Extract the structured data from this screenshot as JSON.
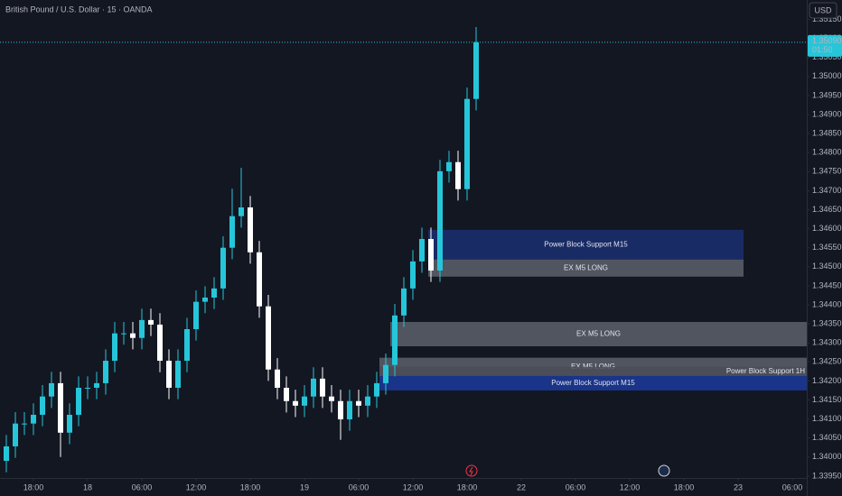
{
  "chart_data": {
    "type": "candlestick",
    "title": "British Pound / U.S. Dollar · 15 · OANDA",
    "currency": "USD",
    "up_color": "#26c6da",
    "down_color": "#ffffff",
    "grid": false,
    "x": [
      -9,
      -8,
      -7,
      -6,
      -5,
      -4,
      -3,
      -2,
      -1,
      0,
      1,
      2,
      3,
      4,
      5,
      6,
      7,
      8,
      9,
      10,
      11,
      12,
      13,
      14,
      15,
      16,
      17,
      18,
      19,
      20,
      21,
      22,
      23,
      24,
      25,
      26,
      27,
      28,
      29,
      30,
      31,
      32,
      33,
      34,
      35,
      36,
      37,
      38,
      39,
      40,
      41,
      42,
      43
    ],
    "open": [
      1.3399,
      1.34028,
      1.34088,
      1.34088,
      1.34111,
      1.34159,
      1.34194,
      1.34064,
      1.34111,
      1.34182,
      1.34182,
      1.34194,
      1.34253,
      1.34325,
      1.34325,
      1.34313,
      1.3436,
      1.34348,
      1.34253,
      1.34182,
      1.34253,
      1.34336,
      1.34408,
      1.34419,
      1.34443,
      1.3455,
      1.34633,
      1.34656,
      1.34538,
      1.34396,
      1.3423,
      1.34182,
      1.34147,
      1.34135,
      1.34159,
      1.34206,
      1.34159,
      1.34147,
      1.34099,
      1.34147,
      1.34135,
      1.34159,
      1.34194,
      1.34242,
      1.34372,
      1.34443,
      1.34514,
      1.34573,
      1.3449,
      1.34751,
      1.34775,
      1.34704,
      1.34941
    ],
    "high": [
      1.34058,
      1.34118,
      1.34118,
      1.34141,
      1.34189,
      1.34224,
      1.34224,
      1.34141,
      1.34212,
      1.34212,
      1.34224,
      1.34283,
      1.34355,
      1.34355,
      1.34355,
      1.3439,
      1.3439,
      1.34378,
      1.34283,
      1.34283,
      1.34366,
      1.34438,
      1.34449,
      1.34473,
      1.3458,
      1.34705,
      1.3476,
      1.34686,
      1.34568,
      1.34426,
      1.3426,
      1.34212,
      1.34177,
      1.34189,
      1.34236,
      1.34236,
      1.34189,
      1.34177,
      1.34177,
      1.34177,
      1.34189,
      1.34224,
      1.34272,
      1.34402,
      1.34473,
      1.34544,
      1.34603,
      1.34603,
      1.34781,
      1.34805,
      1.34805,
      1.34971,
      1.3513
    ],
    "low": [
      1.3396,
      1.33998,
      1.34058,
      1.34058,
      1.34081,
      1.34129,
      1.34,
      1.34034,
      1.34081,
      1.34152,
      1.34152,
      1.34164,
      1.34223,
      1.34295,
      1.34283,
      1.34283,
      1.34318,
      1.34223,
      1.34152,
      1.34152,
      1.34223,
      1.34306,
      1.34378,
      1.34389,
      1.34413,
      1.3452,
      1.34603,
      1.34508,
      1.34366,
      1.342,
      1.34152,
      1.34117,
      1.34105,
      1.34105,
      1.34129,
      1.34129,
      1.34117,
      1.34045,
      1.34069,
      1.34105,
      1.34105,
      1.34129,
      1.34164,
      1.34212,
      1.34342,
      1.34413,
      1.34484,
      1.3446,
      1.3446,
      1.34721,
      1.34674,
      1.34674,
      1.34911
    ],
    "close": [
      1.34028,
      1.34088,
      1.34088,
      1.34111,
      1.34159,
      1.34194,
      1.34064,
      1.34111,
      1.34182,
      1.34182,
      1.34194,
      1.34253,
      1.34325,
      1.34325,
      1.34313,
      1.3436,
      1.34348,
      1.34253,
      1.34182,
      1.34253,
      1.34336,
      1.34408,
      1.34419,
      1.34443,
      1.3455,
      1.34633,
      1.34656,
      1.34538,
      1.34396,
      1.3423,
      1.34182,
      1.34147,
      1.34135,
      1.34159,
      1.34206,
      1.34159,
      1.34147,
      1.34099,
      1.34147,
      1.34135,
      1.34159,
      1.34194,
      1.34242,
      1.34372,
      1.34443,
      1.34514,
      1.34573,
      1.3449,
      1.34751,
      1.34775,
      1.34704,
      1.34941,
      1.3509
    ],
    "xlim": [
      -9.7,
      79.6
    ],
    "xticks": [
      {
        "value": -6,
        "label": "18:00"
      },
      {
        "value": 0,
        "label": "18"
      },
      {
        "value": 6,
        "label": "06:00"
      },
      {
        "value": 12,
        "label": "12:00"
      },
      {
        "value": 18,
        "label": "18:00"
      },
      {
        "value": 24,
        "label": "19"
      },
      {
        "value": 30,
        "label": "06:00"
      },
      {
        "value": 36,
        "label": "12:00"
      },
      {
        "value": 42,
        "label": "18:00"
      },
      {
        "value": 48,
        "label": "22"
      },
      {
        "value": 54,
        "label": "06:00"
      },
      {
        "value": 60,
        "label": "12:00"
      },
      {
        "value": 66,
        "label": "18:00"
      },
      {
        "value": 72,
        "label": "23"
      },
      {
        "value": 78,
        "label": "06:00"
      }
    ],
    "ylim": [
      1.33945,
      1.35201
    ],
    "yticks": [
      {
        "value": 1.3395,
        "label": "1.33950"
      },
      {
        "value": 1.34,
        "label": "1.34000"
      },
      {
        "value": 1.3405,
        "label": "1.34050"
      },
      {
        "value": 1.341,
        "label": "1.34100"
      },
      {
        "value": 1.3415,
        "label": "1.34150"
      },
      {
        "value": 1.342,
        "label": "1.34200"
      },
      {
        "value": 1.3425,
        "label": "1.34250"
      },
      {
        "value": 1.343,
        "label": "1.34300"
      },
      {
        "value": 1.3435,
        "label": "1.34350"
      },
      {
        "value": 1.344,
        "label": "1.34400"
      },
      {
        "value": 1.3445,
        "label": "1.34450"
      },
      {
        "value": 1.345,
        "label": "1.34500"
      },
      {
        "value": 1.3455,
        "label": "1.34550"
      },
      {
        "value": 1.346,
        "label": "1.34600"
      },
      {
        "value": 1.3465,
        "label": "1.34650"
      },
      {
        "value": 1.347,
        "label": "1.34700"
      },
      {
        "value": 1.3475,
        "label": "1.34750"
      },
      {
        "value": 1.348,
        "label": "1.34800"
      },
      {
        "value": 1.3485,
        "label": "1.34850"
      },
      {
        "value": 1.349,
        "label": "1.34900"
      },
      {
        "value": 1.3495,
        "label": "1.34950"
      },
      {
        "value": 1.35,
        "label": "1.35000"
      },
      {
        "value": 1.3505,
        "label": "1.35050"
      },
      {
        "value": 1.351,
        "label": "1.35100"
      },
      {
        "value": 1.3515,
        "label": "1.35150"
      }
    ],
    "last_price": {
      "value": 1.3509,
      "label": "1.35090"
    },
    "countdown": "01:50",
    "zones": [
      {
        "label": "Power Block Support M15",
        "x": [
          37.7,
          72.6
        ],
        "y": [
          1.34519,
          1.34597
        ],
        "color": "#1b2f70",
        "label_align": "center"
      },
      {
        "label": "EX M5 LONG",
        "x": [
          37.7,
          72.6
        ],
        "y": [
          1.34474,
          1.34519
        ],
        "color": "#5d606b",
        "label_align": "center"
      },
      {
        "label": "EX M5 LONG",
        "x": [
          33.5,
          79.6
        ],
        "y": [
          1.34291,
          1.34355
        ],
        "color": "#5d606b",
        "label_align": "center"
      },
      {
        "label": "EX M5 LONG",
        "x": [
          32.3,
          79.6
        ],
        "y": [
          1.34213,
          1.34261
        ],
        "color": "#5d606b",
        "label_align": "center"
      },
      {
        "label": "Power Block Support 1H",
        "x": [
          32.3,
          79.6
        ],
        "y": [
          1.34213,
          1.34237
        ],
        "color": "#4a4d58",
        "label_align": "right"
      },
      {
        "label": "Power Block Support M15",
        "x": [
          32.3,
          79.6
        ],
        "y": [
          1.34175,
          1.34213
        ],
        "color": "#1b3a9a",
        "label_align": "center"
      }
    ]
  }
}
